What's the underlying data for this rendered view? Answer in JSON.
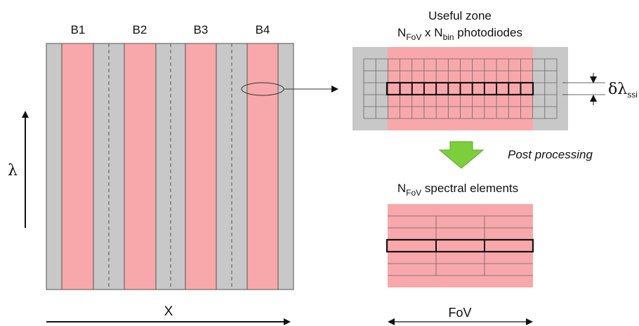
{
  "colors": {
    "grey": "#c8c8c8",
    "pink": "#f8a8ab",
    "line": "#555555",
    "green_arrow": "#7ccf3a",
    "black": "#111111"
  },
  "detector": {
    "bands": [
      "B1",
      "B2",
      "B3",
      "B4"
    ],
    "axis_x": "X",
    "axis_lambda": "λ"
  },
  "useful_zone": {
    "title": "Useful zone",
    "n_fov": {
      "main": "N",
      "sub": "FoV"
    },
    "times": " x ",
    "n_bin": {
      "main": "N",
      "sub": "bin"
    },
    "suffix": " photodiodes",
    "delta_lambda": {
      "main": "δλ",
      "sub": "ssi"
    }
  },
  "post_processing_label": "Post processing",
  "spectral": {
    "n_fov": {
      "main": "N",
      "sub": "FoV"
    },
    "suffix": " spectral elements",
    "fov_label": "FoV"
  }
}
